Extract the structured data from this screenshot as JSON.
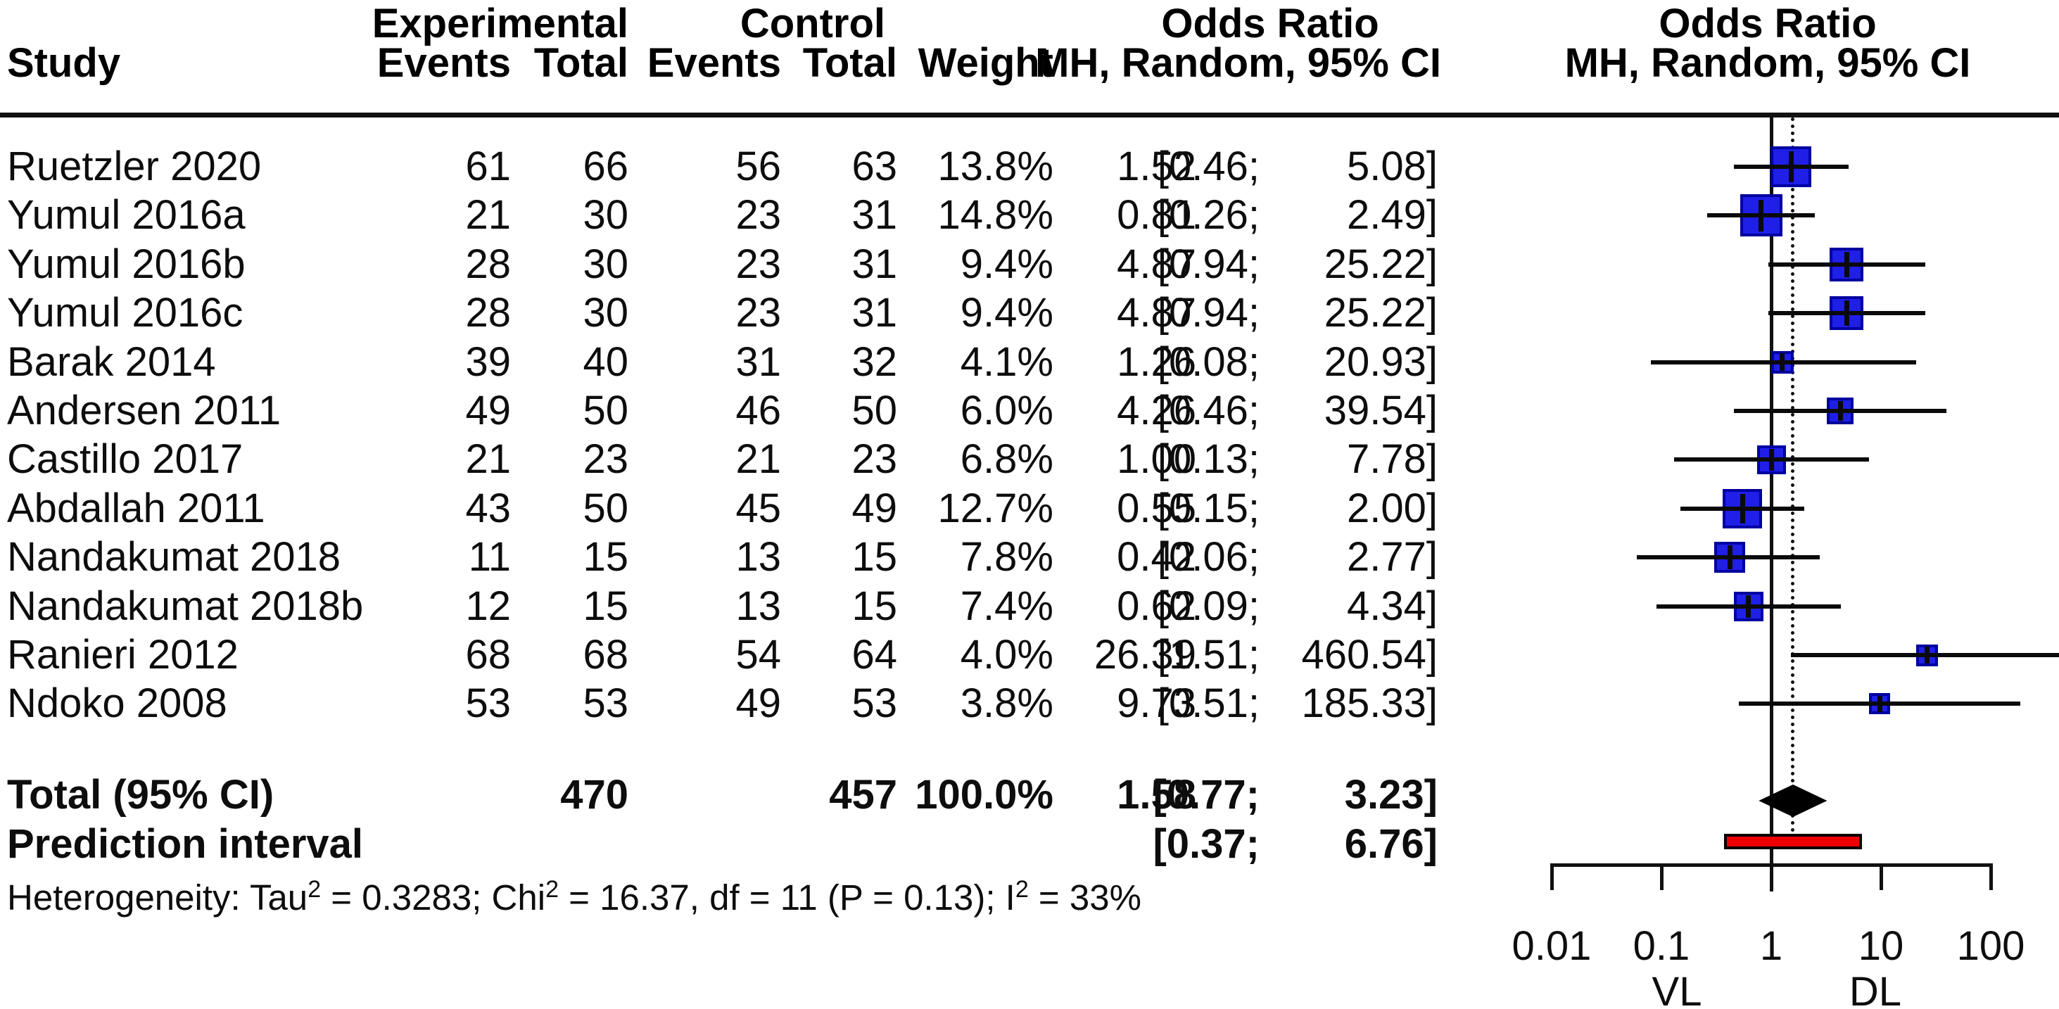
{
  "header": {
    "study_col": "Study",
    "group_experimental": "Experimental",
    "group_control": "Control",
    "events_exp_col": "Events",
    "total_exp_col": "Total",
    "events_ctrl_col": "Events",
    "total_ctrl_col": "Total",
    "weight_col": "Weight",
    "or_table_title": "Odds Ratio",
    "or_table_subtitle": "MH, Random, 95% CI",
    "or_plot_title": "Odds Ratio",
    "or_plot_subtitle": "MH, Random, 95% CI"
  },
  "chart_data": {
    "type": "forest",
    "effect_measure": "Odds Ratio",
    "model": "MH, Random, 95% CI",
    "x_axis": {
      "scale": "log10",
      "ticks": [
        0.01,
        0.1,
        1,
        10,
        100
      ],
      "tick_labels": [
        "0.01",
        "0.1",
        "1",
        "10",
        "100"
      ],
      "estimator_labels": [
        {
          "label": "VL",
          "at": 0.1
        },
        {
          "label": "DL",
          "at": 10
        }
      ]
    },
    "reference_value": 1,
    "overall_value": 1.58,
    "studies": [
      {
        "study": "Ruetzler 2020",
        "events_exp": 61,
        "total_exp": 66,
        "events_ctrl": 56,
        "total_ctrl": 63,
        "weight_pct": 13.8,
        "or": 1.52,
        "ci_low": 0.46,
        "ci_high": 5.08
      },
      {
        "study": "Yumul 2016a",
        "events_exp": 21,
        "total_exp": 30,
        "events_ctrl": 23,
        "total_ctrl": 31,
        "weight_pct": 14.8,
        "or": 0.81,
        "ci_low": 0.26,
        "ci_high": 2.49
      },
      {
        "study": "Yumul 2016b",
        "events_exp": 28,
        "total_exp": 30,
        "events_ctrl": 23,
        "total_ctrl": 31,
        "weight_pct": 9.4,
        "or": 4.87,
        "ci_low": 0.94,
        "ci_high": 25.22
      },
      {
        "study": "Yumul 2016c",
        "events_exp": 28,
        "total_exp": 30,
        "events_ctrl": 23,
        "total_ctrl": 31,
        "weight_pct": 9.4,
        "or": 4.87,
        "ci_low": 0.94,
        "ci_high": 25.22
      },
      {
        "study": "Barak 2014",
        "events_exp": 39,
        "total_exp": 40,
        "events_ctrl": 31,
        "total_ctrl": 32,
        "weight_pct": 4.1,
        "or": 1.26,
        "ci_low": 0.08,
        "ci_high": 20.93
      },
      {
        "study": "Andersen 2011",
        "events_exp": 49,
        "total_exp": 50,
        "events_ctrl": 46,
        "total_ctrl": 50,
        "weight_pct": 6.0,
        "or": 4.26,
        "ci_low": 0.46,
        "ci_high": 39.54
      },
      {
        "study": "Castillo 2017",
        "events_exp": 21,
        "total_exp": 23,
        "events_ctrl": 21,
        "total_ctrl": 23,
        "weight_pct": 6.8,
        "or": 1.0,
        "ci_low": 0.13,
        "ci_high": 7.78
      },
      {
        "study": "Abdallah 2011",
        "events_exp": 43,
        "total_exp": 50,
        "events_ctrl": 45,
        "total_ctrl": 49,
        "weight_pct": 12.7,
        "or": 0.55,
        "ci_low": 0.15,
        "ci_high": 2.0
      },
      {
        "study": "Nandakumat 2018",
        "events_exp": 11,
        "total_exp": 15,
        "events_ctrl": 13,
        "total_ctrl": 15,
        "weight_pct": 7.8,
        "or": 0.42,
        "ci_low": 0.06,
        "ci_high": 2.77
      },
      {
        "study": "Nandakumat 2018b",
        "events_exp": 12,
        "total_exp": 15,
        "events_ctrl": 13,
        "total_ctrl": 15,
        "weight_pct": 7.4,
        "or": 0.62,
        "ci_low": 0.09,
        "ci_high": 4.34
      },
      {
        "study": "Ranieri 2012",
        "events_exp": 68,
        "total_exp": 68,
        "events_ctrl": 54,
        "total_ctrl": 64,
        "weight_pct": 4.0,
        "or": 26.39,
        "ci_low": 1.51,
        "ci_high": 460.54
      },
      {
        "study": "Ndoko 2008",
        "events_exp": 53,
        "total_exp": 53,
        "events_ctrl": 49,
        "total_ctrl": 53,
        "weight_pct": 3.8,
        "or": 9.73,
        "ci_low": 0.51,
        "ci_high": 185.33
      }
    ],
    "total": {
      "label": "Total (95% CI)",
      "total_exp": 470,
      "total_ctrl": 457,
      "weight_pct": 100.0,
      "or": 1.58,
      "ci_low": 0.77,
      "ci_high": 3.23
    },
    "prediction": {
      "label": "Prediction interval",
      "ci_low": 0.37,
      "ci_high": 6.76
    },
    "heterogeneity": {
      "segments": [
        {
          "text": "Heterogeneity: Tau",
          "sup": false
        },
        {
          "text": "2",
          "sup": true
        },
        {
          "text": " = 0.3283; Chi",
          "sup": false
        },
        {
          "text": "2",
          "sup": true
        },
        {
          "text": " = 16.37, df = 11 (P = 0.13); I",
          "sup": false
        },
        {
          "text": "2",
          "sup": true
        },
        {
          "text": " = 33%",
          "sup": false
        }
      ]
    },
    "colors": {
      "square_fill": "#1f1fe8",
      "square_border": "#0000a0",
      "diamond": "#000000",
      "prediction_bar": "#ee0000",
      "lines": "#111111"
    }
  }
}
